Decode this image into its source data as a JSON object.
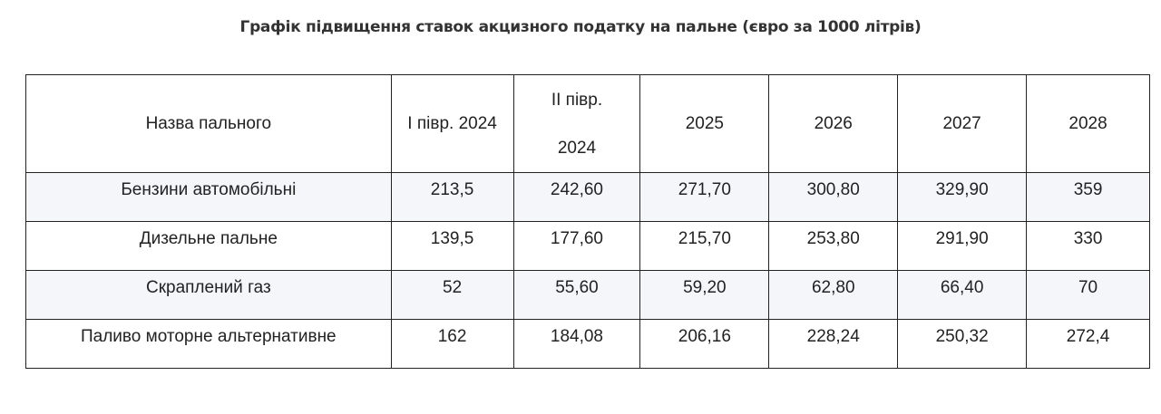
{
  "title": "Графік підвищення ставок акцизного податку на пальне (євро за 1000 літрів)",
  "table": {
    "headers": [
      "Назва пального",
      "І півр. 2024",
      [
        "II півр.",
        "2024"
      ],
      "2025",
      "2026",
      "2027",
      "2028"
    ],
    "rows": [
      [
        "Бензини автомобільні",
        "213,5",
        "242,60",
        "271,70",
        "300,80",
        "329,90",
        "359"
      ],
      [
        "Дизельне пальне",
        "139,5",
        "177,60",
        "215,70",
        "253,80",
        "291,90",
        "330"
      ],
      [
        "Скраплений газ",
        "52",
        "55,60",
        "59,20",
        "62,80",
        "66,40",
        "70"
      ],
      [
        "Паливо моторне альтернативне",
        "162",
        "184,08",
        "206,16",
        "228,24",
        "250,32",
        "272,4"
      ]
    ]
  },
  "colors": {
    "shaded_row": "#f5f6fa",
    "border": "#222222"
  }
}
